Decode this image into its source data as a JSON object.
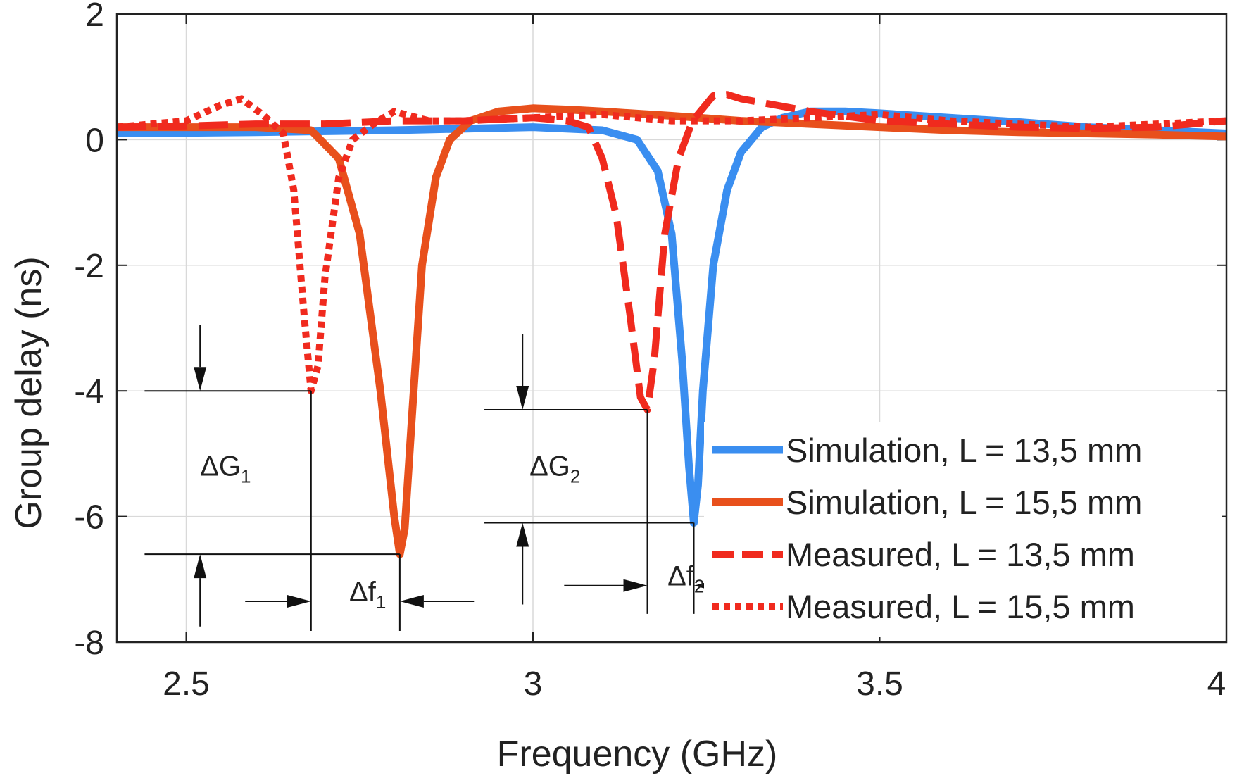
{
  "chart_data": {
    "type": "line",
    "xlabel": "Frequency (GHz)",
    "ylabel": "Group delay (ns)",
    "xlim": [
      2.4,
      4.0
    ],
    "ylim": [
      -8,
      2
    ],
    "xticks": [
      2.5,
      3,
      3.5,
      4
    ],
    "xtick_labels": [
      "2.5",
      "3",
      "3.5",
      "4"
    ],
    "yticks": [
      2,
      0,
      -2,
      -4,
      -6,
      -8
    ],
    "ytick_labels": [
      "2",
      "0",
      "-2",
      "-4",
      "-6",
      "-8"
    ],
    "grid": true,
    "legend_position": "bottom-right",
    "series": [
      {
        "name": "Simulation, L = 13,5 mm",
        "color": "#3a8ef0",
        "style": "solid",
        "x": [
          2.4,
          2.6,
          2.8,
          3.0,
          3.1,
          3.15,
          3.18,
          3.2,
          3.215,
          3.225,
          3.232,
          3.238,
          3.245,
          3.26,
          3.28,
          3.3,
          3.33,
          3.36,
          3.4,
          3.45,
          3.5,
          3.6,
          3.7,
          3.8,
          3.9,
          4.0
        ],
        "y": [
          0.1,
          0.12,
          0.15,
          0.2,
          0.15,
          0.0,
          -0.5,
          -1.5,
          -3.5,
          -5.2,
          -6.1,
          -5.5,
          -4.0,
          -2.0,
          -0.8,
          -0.2,
          0.2,
          0.35,
          0.45,
          0.45,
          0.42,
          0.35,
          0.28,
          0.2,
          0.15,
          0.1
        ]
      },
      {
        "name": "Simulation, L = 15,5 mm",
        "color": "#e8501c",
        "style": "solid",
        "x": [
          2.4,
          2.6,
          2.68,
          2.72,
          2.75,
          2.78,
          2.8,
          2.808,
          2.815,
          2.825,
          2.84,
          2.86,
          2.88,
          2.91,
          2.95,
          3.0,
          3.05,
          3.1,
          3.2,
          3.3,
          3.4,
          3.5,
          3.6,
          3.7,
          3.8,
          3.9,
          4.0
        ],
        "y": [
          0.2,
          0.2,
          0.15,
          -0.3,
          -1.5,
          -4.0,
          -6.0,
          -6.6,
          -6.2,
          -4.5,
          -2.0,
          -0.6,
          0.0,
          0.3,
          0.45,
          0.5,
          0.48,
          0.45,
          0.38,
          0.3,
          0.25,
          0.2,
          0.15,
          0.12,
          0.1,
          0.08,
          0.05
        ]
      },
      {
        "name": "Measured, L = 13,5 mm",
        "color": "#f02a1e",
        "style": "dashed",
        "x": [
          2.4,
          2.5,
          2.6,
          2.7,
          2.8,
          2.9,
          3.0,
          3.05,
          3.08,
          3.1,
          3.12,
          3.14,
          3.155,
          3.165,
          3.175,
          3.19,
          3.21,
          3.23,
          3.26,
          3.28,
          3.3,
          3.35,
          3.4,
          3.5,
          3.6,
          3.7,
          3.8,
          3.9,
          4.0
        ],
        "y": [
          0.2,
          0.22,
          0.25,
          0.25,
          0.3,
          0.3,
          0.35,
          0.3,
          0.2,
          -0.3,
          -1.2,
          -2.8,
          -4.1,
          -4.3,
          -3.5,
          -1.5,
          -0.3,
          0.3,
          0.7,
          0.72,
          0.65,
          0.55,
          0.45,
          0.3,
          0.25,
          0.2,
          0.18,
          0.2,
          0.3
        ]
      },
      {
        "name": "Measured, L = 15,5 mm",
        "color": "#f02a1e",
        "style": "dotted",
        "x": [
          2.4,
          2.45,
          2.5,
          2.55,
          2.58,
          2.61,
          2.64,
          2.655,
          2.67,
          2.68,
          2.69,
          2.7,
          2.72,
          2.74,
          2.77,
          2.8,
          2.85,
          2.9,
          3.0,
          3.1,
          3.2,
          3.3,
          3.4,
          3.5,
          3.6,
          3.7,
          3.8,
          3.9,
          4.0
        ],
        "y": [
          0.2,
          0.25,
          0.3,
          0.55,
          0.65,
          0.4,
          0.1,
          -0.8,
          -2.8,
          -4.0,
          -3.6,
          -2.2,
          -0.6,
          0.0,
          0.25,
          0.45,
          0.3,
          0.3,
          0.35,
          0.4,
          0.3,
          0.3,
          0.35,
          0.4,
          0.3,
          0.25,
          0.2,
          0.25,
          0.3
        ]
      }
    ],
    "annotations": [
      {
        "name": "delta-g1",
        "main": "ΔG",
        "sub": "1",
        "x": 2.52,
        "y": -5.35
      },
      {
        "name": "delta-f1",
        "main": "Δf",
        "sub": "1",
        "x": 2.735,
        "y": -7.35
      },
      {
        "name": "delta-g2",
        "main": "ΔG",
        "sub": "2",
        "x": 2.995,
        "y": -5.35
      },
      {
        "name": "delta-f2",
        "main": "Δf",
        "sub": "2",
        "x": 3.194,
        "y": -7.1
      }
    ]
  }
}
